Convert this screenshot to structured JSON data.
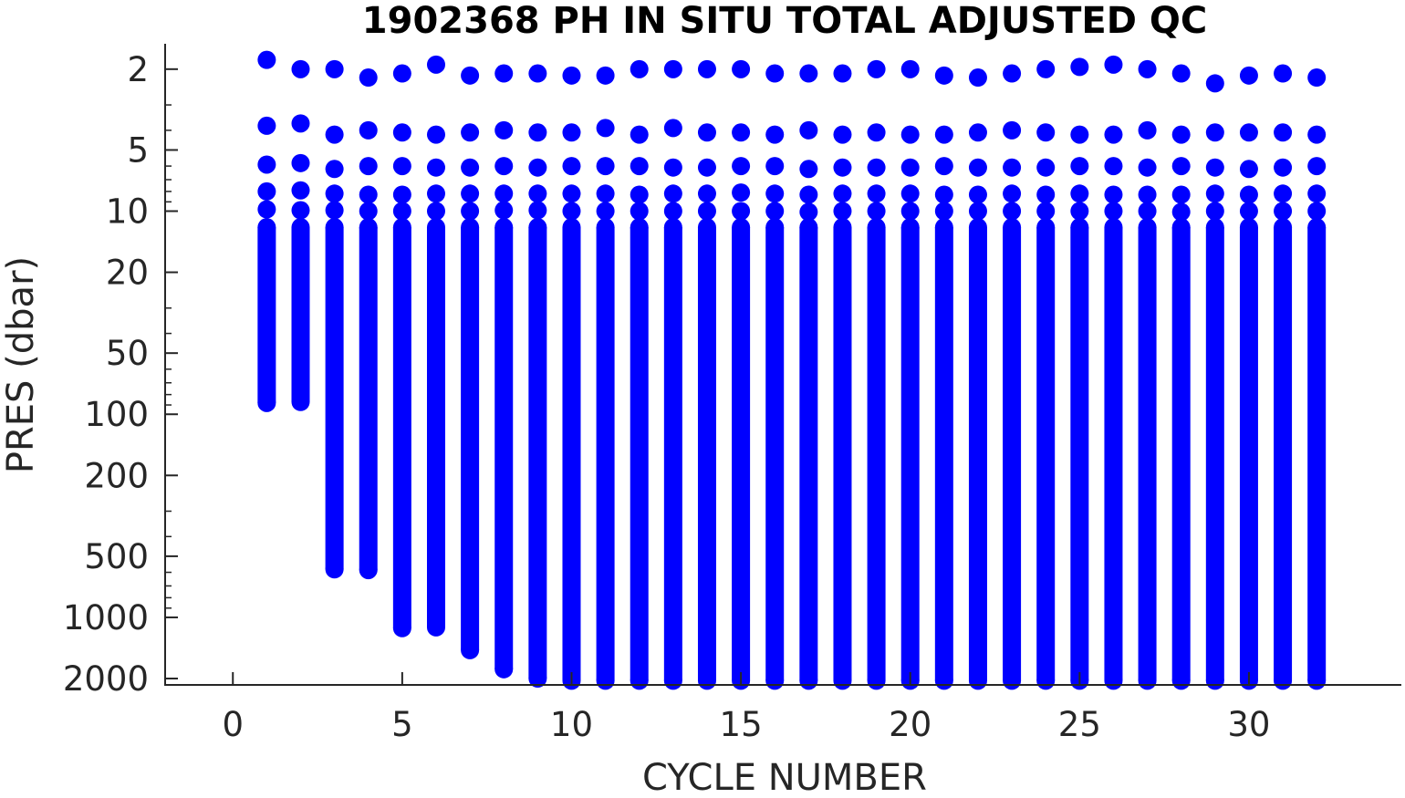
{
  "chart_data": {
    "type": "scatter",
    "title": "1902368  PH IN SITU TOTAL ADJUSTED QC",
    "xlabel": "CYCLE NUMBER",
    "ylabel": "PRES (dbar)",
    "xlim": [
      -2,
      34.5
    ],
    "ylim": [
      1.5,
      2150
    ],
    "y_scale": "log",
    "y_reversed": true,
    "grid": false,
    "legend": "none",
    "marker_color": "#0000ff",
    "x_ticks": [
      0,
      5,
      10,
      15,
      20,
      25,
      30
    ],
    "y_ticks": [
      2,
      5,
      10,
      20,
      50,
      100,
      200,
      500,
      1000,
      2000
    ],
    "cycles": [
      1,
      2,
      3,
      4,
      5,
      6,
      7,
      8,
      9,
      10,
      11,
      12,
      13,
      14,
      15,
      16,
      17,
      18,
      19,
      20,
      21,
      22,
      23,
      24,
      25,
      26,
      27,
      28,
      29,
      30,
      31,
      32
    ],
    "surface_pres": [
      1.8,
      2.0,
      2.0,
      2.2,
      2.1,
      1.9,
      2.15,
      2.1,
      2.1,
      2.15,
      2.15,
      2.0,
      2.0,
      2.0,
      2.0,
      2.1,
      2.1,
      2.1,
      2.0,
      2.0,
      2.15,
      2.2,
      2.1,
      2.0,
      1.95,
      1.9,
      2.0,
      2.1,
      2.35,
      2.15,
      2.1,
      2.2
    ],
    "near_surface_pres": [
      [
        3.8,
        5.9,
        8.0,
        9.8
      ],
      [
        3.7,
        5.8,
        7.9,
        9.9
      ],
      [
        4.2,
        6.2,
        8.2,
        9.9
      ],
      [
        4.0,
        6.0,
        8.3,
        10.0
      ],
      [
        4.1,
        6.0,
        8.3,
        10.0
      ],
      [
        4.2,
        6.1,
        8.2,
        10.0
      ],
      [
        4.1,
        6.1,
        8.2,
        10.0
      ],
      [
        4.0,
        6.0,
        8.2,
        9.9
      ],
      [
        4.1,
        6.1,
        8.2,
        9.9
      ],
      [
        4.1,
        6.0,
        8.2,
        10.0
      ],
      [
        3.9,
        6.0,
        8.2,
        10.0
      ],
      [
        4.2,
        6.0,
        8.3,
        10.0
      ],
      [
        3.9,
        6.1,
        8.2,
        10.0
      ],
      [
        4.1,
        6.1,
        8.2,
        10.0
      ],
      [
        4.1,
        6.0,
        8.1,
        10.0
      ],
      [
        4.2,
        6.0,
        8.2,
        10.0
      ],
      [
        4.0,
        6.2,
        8.3,
        10.1
      ],
      [
        4.2,
        6.1,
        8.2,
        10.0
      ],
      [
        4.1,
        6.1,
        8.2,
        10.0
      ],
      [
        4.2,
        6.1,
        8.2,
        10.0
      ],
      [
        4.2,
        6.0,
        8.3,
        10.0
      ],
      [
        4.1,
        6.1,
        8.3,
        10.0
      ],
      [
        4.0,
        6.1,
        8.2,
        10.0
      ],
      [
        4.1,
        6.1,
        8.3,
        10.0
      ],
      [
        4.2,
        6.0,
        8.2,
        10.0
      ],
      [
        4.2,
        6.0,
        8.3,
        10.0
      ],
      [
        4.0,
        6.1,
        8.3,
        10.0
      ],
      [
        4.2,
        6.0,
        8.3,
        10.1
      ],
      [
        4.1,
        6.1,
        8.2,
        10.0
      ],
      [
        4.1,
        6.2,
        8.3,
        10.0
      ],
      [
        4.1,
        6.1,
        8.2,
        10.0
      ],
      [
        4.2,
        6.0,
        8.2,
        10.0
      ]
    ],
    "profile_top_pres": 12,
    "profile_bottom_pres": [
      88,
      87,
      580,
      585,
      1130,
      1120,
      1450,
      1800,
      2000,
      2050,
      2050,
      2050,
      2050,
      2050,
      2050,
      2050,
      2050,
      2050,
      2050,
      2050,
      2050,
      2050,
      2050,
      2050,
      2050,
      2050,
      2050,
      2050,
      2050,
      2050,
      2050,
      2050
    ]
  }
}
